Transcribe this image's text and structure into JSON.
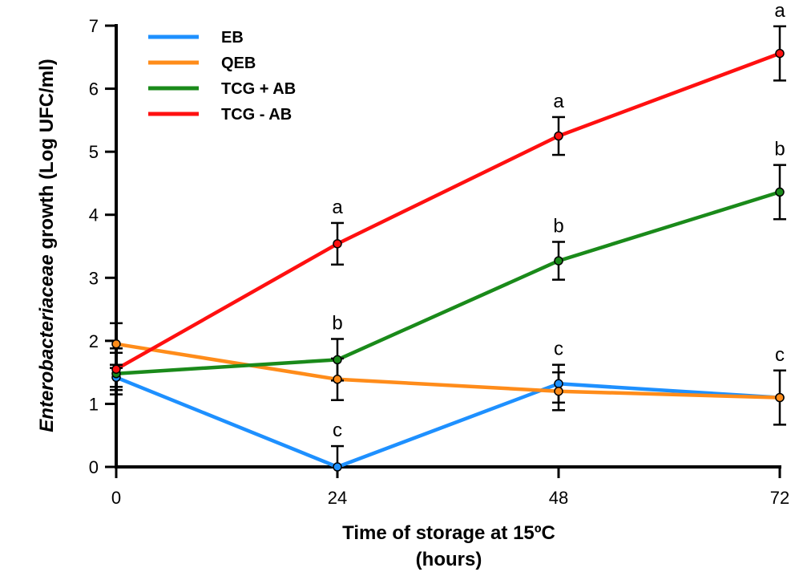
{
  "chart_data": {
    "type": "line",
    "title": "",
    "xlabel": [
      "Time of storage at 15ºC",
      "(hours)"
    ],
    "ylabel_italic": "Enterobacteriaceae",
    "ylabel_rest": " growth (Log UFC/ml)",
    "x": [
      0,
      24,
      48,
      72
    ],
    "xticks": [
      "0",
      "24",
      "48",
      "72"
    ],
    "yticks": [
      "0",
      "1",
      "2",
      "3",
      "4",
      "5",
      "6",
      "7"
    ],
    "xlim": [
      0,
      72
    ],
    "ylim": [
      0,
      7
    ],
    "grid": false,
    "legend_position": "top-left",
    "series": [
      {
        "name": "EB",
        "color": "#1e90ff",
        "values": [
          1.42,
          0.0,
          1.32,
          1.1
        ],
        "errors": [
          0.15,
          0.33,
          0.3,
          0.43
        ],
        "labels": [
          "",
          "c",
          "c",
          "c"
        ]
      },
      {
        "name": "QEB",
        "color": "#ff8c1a",
        "values": [
          1.95,
          1.39,
          1.2,
          1.1
        ],
        "errors": [
          0.33,
          0.33,
          0.3,
          0.0
        ],
        "labels": [
          "",
          "",
          "",
          ""
        ]
      },
      {
        "name": "TCG + AB",
        "color": "#1a8a1a",
        "values": [
          1.48,
          1.7,
          3.27,
          4.36
        ],
        "errors": [
          0.33,
          0.33,
          0.3,
          0.43
        ],
        "labels": [
          "",
          "b",
          "b",
          "b"
        ]
      },
      {
        "name": "TCG - AB",
        "color": "#ff1010",
        "values": [
          1.55,
          3.54,
          5.25,
          6.56
        ],
        "errors": [
          0.33,
          0.33,
          0.3,
          0.43
        ],
        "labels": [
          "",
          "a",
          "a",
          "a"
        ]
      }
    ]
  }
}
